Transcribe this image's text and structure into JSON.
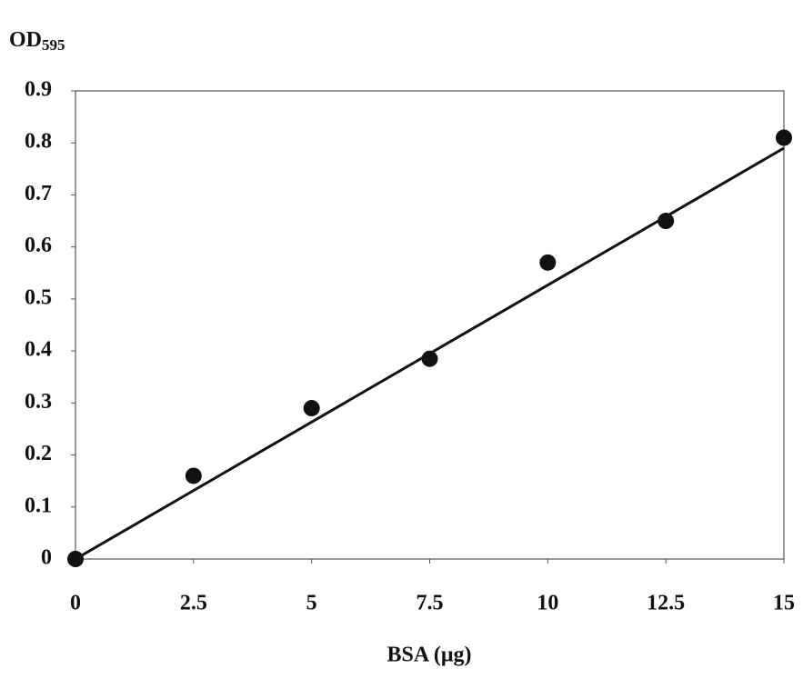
{
  "chart_data": {
    "type": "scatter",
    "y_label": "OD",
    "y_label_subscript": "595",
    "x_label": "BSA (μg)",
    "x": [
      0,
      2.5,
      5,
      7.5,
      10,
      12.5,
      15
    ],
    "values": [
      0,
      0.16,
      0.29,
      0.385,
      0.57,
      0.65,
      0.81
    ],
    "color": "#111111",
    "trendline": {
      "x": [
        0,
        15
      ],
      "y": [
        0,
        0.79
      ]
    },
    "xlim": [
      0,
      15
    ],
    "xticks": [
      0,
      2.5,
      5,
      7.5,
      10,
      12.5,
      15
    ],
    "ylim": [
      0,
      0.9
    ],
    "yticks": [
      0,
      0.1,
      0.2,
      0.3,
      0.4,
      0.5,
      0.6,
      0.7,
      0.8,
      0.9
    ],
    "grid": false
  }
}
